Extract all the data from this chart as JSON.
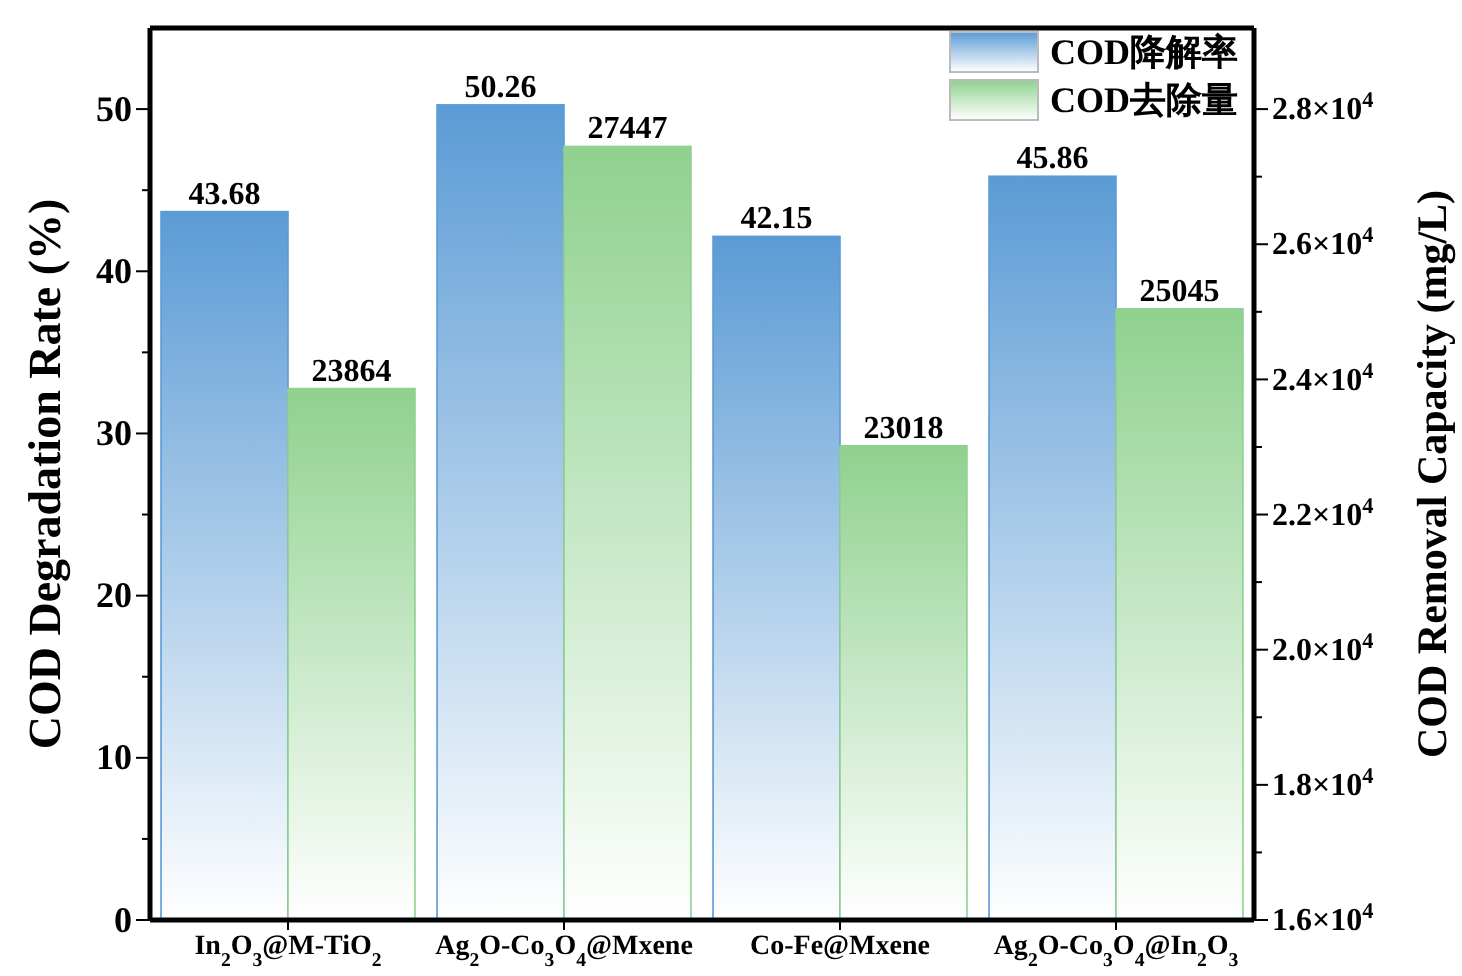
{
  "chart_data": {
    "type": "bar",
    "ylabel": "COD Degradation Rate (%)",
    "y2label": "COD Removal Capacity (mg/L)",
    "categories": [
      "In$_{2}$O$_{3}$@M-TiO$_{2}$",
      "Ag$_{2}$O-Co$_{3}$O$_{4}$@Mxene",
      "Co-Fe@Mxene",
      "Ag$_{2}$O-Co$_{3}$O$_{4}$@In$_{2}$O$_{3}$"
    ],
    "series": [
      {
        "name": "COD降解率",
        "color": "#5b9bd5",
        "values": [
          43.68,
          50.26,
          42.15,
          45.86
        ]
      },
      {
        "name": "COD去除量",
        "color": "#8fd18f",
        "axis": "y2",
        "values": [
          23864,
          27447,
          23018,
          25045
        ]
      }
    ],
    "ylim": [
      0,
      55
    ],
    "yticks": [
      0,
      {
        "value": 5,
        "label": null
      },
      10,
      {
        "value": 15,
        "label": null
      },
      20,
      {
        "value": 25,
        "label": null
      },
      30,
      {
        "value": 35,
        "label": null
      },
      40,
      {
        "value": 45,
        "label": null
      },
      50
    ],
    "y2lim": [
      16000,
      29200
    ],
    "y2ticks": [
      {
        "value": 16000,
        "label": "1.6×10$^{4}$"
      },
      {
        "value": 17000,
        "label": null
      },
      {
        "value": 18000,
        "label": "1.8×10$^{4}$"
      },
      {
        "value": 19000,
        "label": null
      },
      {
        "value": 20000,
        "label": "2.0×10$^{4}$"
      },
      {
        "value": 21000,
        "label": null
      },
      {
        "value": 22000,
        "label": "2.2×10$^{4}$"
      },
      {
        "value": 23000,
        "label": null
      },
      {
        "value": 24000,
        "label": "2.4×10$^{4}$"
      },
      {
        "value": 25000,
        "label": null
      },
      {
        "value": 26000,
        "label": "2.6×10$^{4}$"
      },
      {
        "value": 27000,
        "label": null
      },
      {
        "value": 28000,
        "label": "2.8×10$^{4}$"
      }
    ],
    "data_labels": true,
    "legend": "top right",
    "grid": false
  }
}
